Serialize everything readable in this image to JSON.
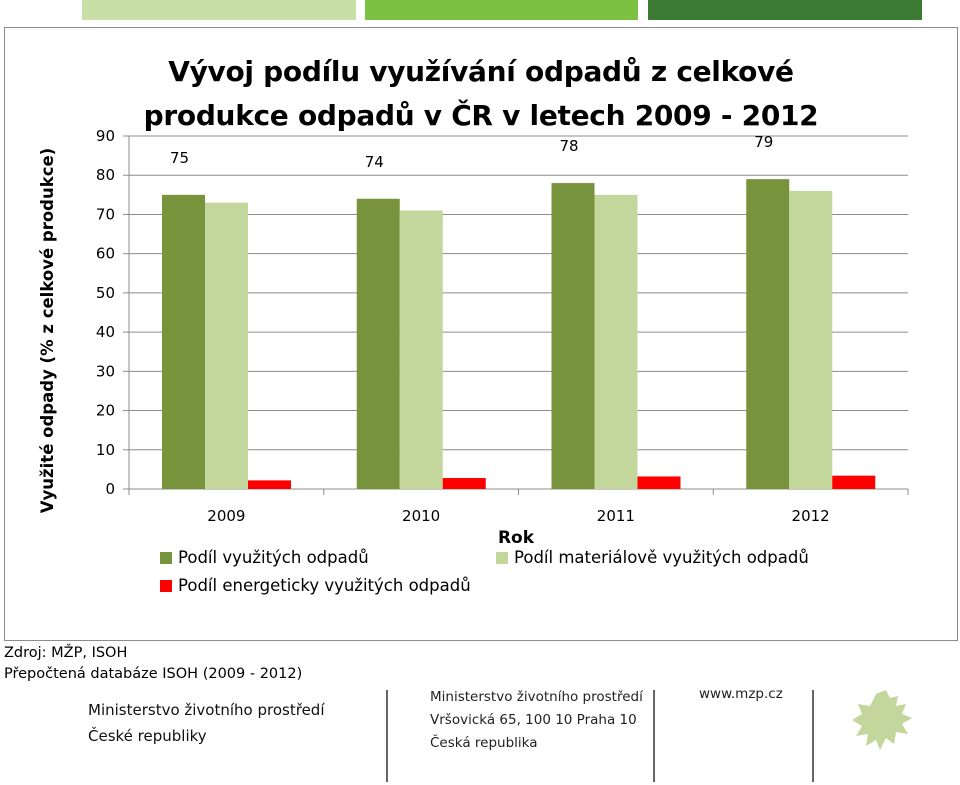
{
  "header": {
    "band_colors": [
      "#c8e0a8",
      "#7cc242",
      "#3b7a32"
    ]
  },
  "chart_data": {
    "type": "bar",
    "title": "Vývoj podílu využívání odpadů z celkové\nprodukce odpadů v ČR v letech 2009 - 2012",
    "xlabel": "Rok",
    "ylabel": "Využité odpady (% z celkové produkce)",
    "categories": [
      "2009",
      "2010",
      "2011",
      "2012"
    ],
    "ylim": [
      0,
      90
    ],
    "yticks": [
      0,
      10,
      20,
      30,
      40,
      50,
      60,
      70,
      80,
      90
    ],
    "grid": true,
    "legend_position": "bottom",
    "series": [
      {
        "name": "Podíl využitých odpadů",
        "color": "#77933c",
        "values": [
          75,
          74,
          78,
          79
        ],
        "data_labels": [
          "75",
          "74",
          "78",
          "79"
        ]
      },
      {
        "name": "Podíl materiálově využitých odpadů",
        "color": "#c3d69b",
        "values": [
          73,
          71,
          75,
          76
        ]
      },
      {
        "name": "Podíl energeticky využitých odpadů",
        "color": "#ff0000",
        "values": [
          2.2,
          2.8,
          3.2,
          3.4
        ]
      }
    ]
  },
  "footer": {
    "source": "Zdroj: MŽP, ISOH",
    "note": "Přepočtená databáze ISOH (2009 - 2012)",
    "ministry_name": "Ministerstvo životního prostředí\nČeské republiky",
    "address": "Ministerstvo životního prostředí\nVršovická 65, 100 10  Praha 10\nČeská republika",
    "web": "www.mzp.cz",
    "logo_icon": "lion-icon",
    "logo_color": "#c3d69b"
  }
}
